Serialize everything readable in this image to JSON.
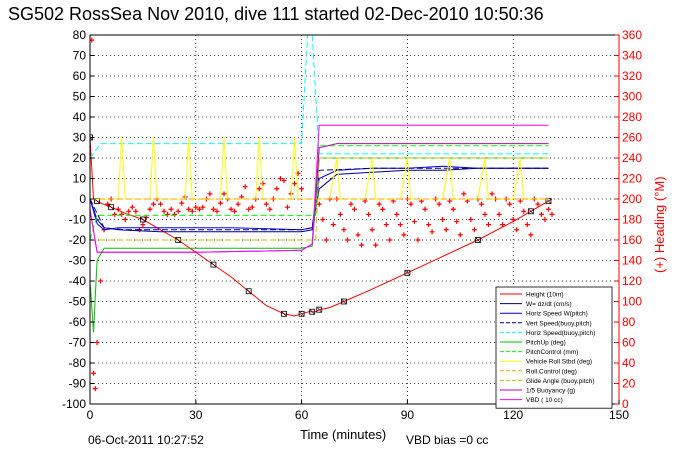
{
  "title": "SG502 RossSea Nov 2010, dive 111 started 02-Dec-2010 10:50:36",
  "footer": {
    "timestamp": "06-Oct-2011 10:27:52",
    "vbd_bias": "VBD bias =0 cc"
  },
  "chart_data": {
    "type": "line",
    "xlabel": "Time (minutes)",
    "ylabel": "",
    "ylabel_right": "(+) Heading (°M)",
    "xlim": [
      0,
      150
    ],
    "ylim": [
      -100,
      80
    ],
    "ylim_right": [
      0,
      360
    ],
    "xticks": [
      "0",
      "30",
      "60",
      "90",
      "120",
      "150"
    ],
    "yticks": [
      "80",
      "70",
      "60",
      "50",
      "40",
      "30",
      "20",
      "10",
      "0",
      "-10",
      "-20",
      "-30",
      "-40",
      "-50",
      "-60",
      "-70",
      "-80",
      "-90",
      "-100"
    ],
    "yticks_right": [
      "360",
      "340",
      "320",
      "300",
      "280",
      "260",
      "240",
      "220",
      "200",
      "180",
      "160",
      "140",
      "120",
      "100",
      "80",
      "60",
      "40",
      "20",
      "0"
    ],
    "grid": true,
    "legend_position": "bottom-right",
    "colors": {
      "height": "#ff0000",
      "w": "#000080",
      "horiz_w": "#0000ff",
      "vert_buoy": "#000080",
      "horiz_buoy": "#00ffff",
      "pitch_up": "#00c000",
      "pitch_control": "#00ff00",
      "vehicle_roll": "#ffff00",
      "roll_control": "#ffa000",
      "glide_angle": "#c0c000",
      "buoyancy": "#c000c0",
      "vbd": "#ff00ff",
      "heading": "#ff0000",
      "right_axis": "#ff0000"
    },
    "series": [
      {
        "name": "Height (10m)",
        "style": "line-marker",
        "color": "#ff0000",
        "x": [
          0,
          1,
          2,
          3,
          6,
          10,
          15,
          20,
          25,
          30,
          35,
          40,
          45,
          50,
          55,
          58,
          60,
          62,
          63,
          64,
          65,
          68,
          72,
          80,
          90,
          100,
          110,
          120,
          125,
          128,
          130,
          131
        ],
        "y": [
          30,
          0,
          -1,
          -2,
          -4,
          -7,
          -10,
          -15,
          -20,
          -26,
          -32,
          -38,
          -45,
          -52,
          -56,
          -57,
          -56,
          -55,
          -55,
          -55,
          -54,
          -53,
          -50,
          -44,
          -36,
          -28,
          -20,
          -11,
          -6,
          -3,
          -1,
          0
        ]
      },
      {
        "name": "W= dz/dt (cm/s)",
        "style": "solid",
        "color": "#000080",
        "x": [
          0,
          2,
          4,
          8,
          20,
          40,
          60,
          63,
          65,
          70,
          80,
          90,
          100,
          110,
          120,
          130
        ],
        "y": [
          0,
          -10,
          -14,
          -15,
          -16,
          -16,
          -16,
          -15,
          5,
          12,
          13,
          14,
          14,
          15,
          15,
          15
        ]
      },
      {
        "name": "Horiz Speed W(pitch)",
        "style": "solid",
        "color": "#0000ff",
        "x": [
          0,
          2,
          4,
          8,
          20,
          40,
          60,
          63,
          65,
          70,
          80,
          90,
          100,
          110,
          120,
          130
        ],
        "y": [
          0,
          -12,
          -15,
          -14,
          -14,
          -14,
          -15,
          -14,
          10,
          14,
          15,
          15,
          16,
          15,
          15,
          15
        ]
      },
      {
        "name": "Vert Speed(buoy,pitch)",
        "style": "dashed",
        "color": "#000080",
        "x": [
          0,
          4,
          10,
          30,
          60,
          63,
          65,
          80,
          100,
          130
        ],
        "y": [
          0,
          -14,
          -15,
          -15,
          -15,
          -14,
          14,
          15,
          15,
          15
        ]
      },
      {
        "name": "Horiz Speed(buoy,pitch)",
        "style": "dashed",
        "color": "#00ffff",
        "x": [
          0,
          3,
          8,
          30,
          60,
          62,
          63,
          65,
          70,
          100,
          130
        ],
        "y": [
          20,
          27,
          27,
          27,
          27,
          90,
          80,
          22,
          22,
          22,
          22
        ]
      },
      {
        "name": "PitchUp (deg)",
        "style": "solid",
        "color": "#00c000",
        "x": [
          0,
          1,
          2,
          4,
          10,
          30,
          60,
          63,
          65,
          80,
          130
        ],
        "y": [
          -40,
          -65,
          -30,
          -24,
          -24,
          -24,
          -24,
          -23,
          20,
          20,
          20
        ]
      },
      {
        "name": "PitchControl (mm)",
        "style": "dashed",
        "color": "#00ff00",
        "x": [
          0,
          2,
          10,
          30,
          60,
          64,
          65,
          100,
          130
        ],
        "y": [
          -20,
          -8,
          -8,
          -8,
          -8,
          -8,
          26,
          26,
          26
        ]
      },
      {
        "name": "Vehicle Roll Stbd (deg)",
        "style": "solid",
        "color": "#ffff00",
        "x": [
          0,
          5,
          8,
          9,
          10,
          15,
          17,
          18,
          19,
          25,
          27,
          28,
          29,
          35,
          37,
          38,
          39,
          45,
          47,
          48,
          49,
          55,
          57,
          58,
          59,
          63,
          68,
          70,
          71,
          72,
          78,
          80,
          81,
          82,
          88,
          90,
          91,
          92,
          100,
          102,
          103,
          110,
          112,
          113,
          120,
          122,
          123,
          130
        ],
        "y": [
          0,
          0,
          0,
          30,
          0,
          0,
          0,
          30,
          0,
          0,
          0,
          30,
          0,
          0,
          0,
          30,
          0,
          0,
          0,
          30,
          0,
          0,
          0,
          30,
          0,
          0,
          0,
          20,
          0,
          0,
          0,
          20,
          0,
          0,
          0,
          20,
          0,
          0,
          0,
          20,
          0,
          0,
          20,
          0,
          0,
          20,
          0,
          0
        ]
      },
      {
        "name": "Roll Control (deg)",
        "style": "dashed",
        "color": "#ffa000",
        "x": [
          0,
          10,
          60,
          65,
          130
        ],
        "y": [
          0,
          0,
          0,
          0,
          0
        ]
      },
      {
        "name": "Glide Angle (buoy,pitch)",
        "style": "dashed",
        "color": "#c0c000",
        "x": [
          0,
          5,
          30,
          60,
          64,
          65,
          100,
          130
        ],
        "y": [
          -20,
          -20,
          -20,
          -20,
          -20,
          20,
          20,
          20
        ]
      },
      {
        "name": "1/5 Buoyancy (g)",
        "style": "solid",
        "color": "#c000c0",
        "x": [
          0,
          2,
          5,
          30,
          60,
          63,
          65,
          70,
          100,
          130
        ],
        "y": [
          -5,
          -26,
          -26,
          -26,
          -25,
          -22,
          25,
          27,
          27,
          27
        ]
      },
      {
        "name": "VBD ( 10 cc)",
        "style": "solid",
        "color": "#ff00ff",
        "x": [
          0,
          2,
          5,
          30,
          60,
          63,
          65,
          70,
          100,
          130
        ],
        "y": [
          -5,
          -26,
          -26,
          -26,
          -25,
          -22,
          36,
          36,
          36,
          36
        ]
      }
    ],
    "heading_series": {
      "name": "Heading",
      "axis": "right",
      "color": "#ff0000",
      "x": [
        0.5,
        1,
        1.5,
        2,
        3,
        4,
        5,
        6,
        7,
        8,
        9,
        10,
        11,
        12,
        13,
        14,
        15,
        16,
        17,
        18,
        19,
        20,
        21,
        22,
        23,
        24,
        25,
        26,
        27,
        28,
        29,
        30,
        31,
        32,
        33,
        34,
        35,
        36,
        37,
        38,
        39,
        40,
        41,
        42,
        43,
        44,
        45,
        46,
        47,
        48,
        49,
        50,
        51,
        52,
        53,
        54,
        55,
        56,
        57,
        58,
        59,
        60,
        65,
        66,
        67,
        68,
        69,
        70,
        71,
        72,
        73,
        74,
        75,
        76,
        77,
        78,
        79,
        80,
        81,
        82,
        83,
        84,
        85,
        86,
        87,
        88,
        89,
        90,
        91,
        92,
        93,
        94,
        95,
        96,
        97,
        98,
        99,
        100,
        101,
        102,
        103,
        104,
        105,
        106,
        107,
        108,
        109,
        110,
        111,
        112,
        113,
        114,
        115,
        116,
        117,
        118,
        119,
        120,
        121,
        122,
        123,
        124,
        125,
        126,
        127,
        128,
        129,
        130,
        131
      ],
      "y": [
        355,
        30,
        15,
        60,
        120,
        170,
        195,
        200,
        185,
        190,
        185,
        180,
        188,
        192,
        188,
        170,
        175,
        182,
        190,
        195,
        200,
        195,
        188,
        185,
        190,
        185,
        188,
        196,
        202,
        190,
        188,
        192,
        190,
        192,
        200,
        205,
        190,
        188,
        196,
        205,
        200,
        190,
        188,
        195,
        202,
        212,
        190,
        192,
        200,
        210,
        215,
        195,
        190,
        200,
        210,
        220,
        218,
        192,
        205,
        215,
        225,
        210,
        195,
        180,
        160,
        200,
        175,
        200,
        185,
        170,
        160,
        195,
        190,
        165,
        155,
        198,
        185,
        170,
        155,
        195,
        190,
        175,
        160,
        198,
        185,
        175,
        165,
        200,
        195,
        178,
        160,
        198,
        190,
        175,
        168,
        200,
        195,
        180,
        170,
        198,
        190,
        178,
        165,
        205,
        198,
        180,
        170,
        200,
        195,
        185,
        175,
        205,
        200,
        185,
        175,
        200,
        195,
        180,
        170,
        198,
        188,
        175,
        165,
        200,
        195,
        185,
        180,
        190,
        185
      ]
    }
  }
}
